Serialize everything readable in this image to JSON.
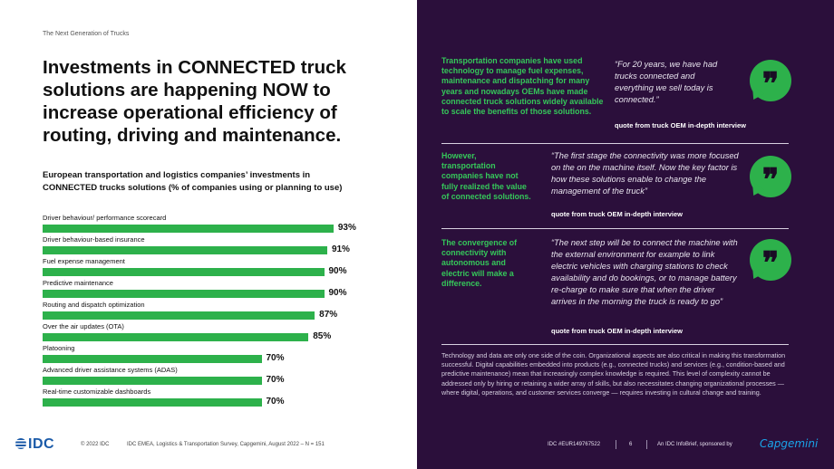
{
  "eyebrow": "The Next Generation of Trucks",
  "headline": "Investments in CONNECTED truck solutions are happening NOW to increase operational efficiency of routing, driving and maintenance.",
  "chart_title_part1": "European transportation and logistics companies’ investments in",
  "chart_title_part2": "CONNECTED",
  "chart_title_part3": " trucks solutions (% of companies using or planning to use)",
  "chart_data": {
    "type": "bar",
    "orientation": "horizontal",
    "categories": [
      "Driver behaviour/ performance scorecard",
      "Driver behaviour-based insurance",
      "Fuel expense management",
      "Predictive maintenance",
      "Routing and dispatch optimization",
      "Over the air updates (OTA)",
      "Platooning",
      "Advanced driver assistance systems (ADAS)",
      "Real-time customizable dashboards"
    ],
    "values": [
      93,
      91,
      90,
      90,
      87,
      85,
      70,
      70,
      70
    ],
    "value_labels": [
      "93%",
      "91%",
      "90%",
      "90%",
      "87%",
      "85%",
      "70%",
      "70%",
      "70%"
    ],
    "xlim": [
      0,
      100
    ],
    "bar_color": "#2db14b"
  },
  "sections": [
    {
      "green": "Transportation companies have used technology to manage fuel expenses, maintenance and dispatching for many years and nowadays OEMs have made connected truck solutions widely available to scale the benefits of those solutions.",
      "quote": "“For 20 years, we have had trucks connected and everything we sell today is connected.”",
      "attribution": "quote from truck OEM in-depth interview",
      "icon": "quote-icon"
    },
    {
      "green": "However, transportation companies have not fully realized the value of connected solutions.",
      "quote": "“The first stage the connectivity was more focused on the on the machine itself. Now the key factor is how these solutions enable to change the management of the truck”",
      "attribution": "quote from truck OEM in-depth interview",
      "icon": "quote-icon"
    },
    {
      "green": "The convergence of connectivity with autonomous and electric will make a difference.",
      "quote": "“The next step will be to connect the machine with the external environment for example to link electric vehicles with charging stations to check availability and do bookings, or to manage battery re-charge to make sure that when the driver arrives in the morning the truck is ready to go”",
      "attribution": "quote from truck OEM in-depth interview",
      "icon": "quote-icon"
    }
  ],
  "body_text": "Technology and data are only one side of the coin. Organizational aspects are also critical in making this transformation successful. Digital capabilities embedded into products (e.g., connected trucks) and services (e.g., condition-based and predictive maintenance) mean that increasingly complex knowledge is required. This level of complexity cannot be addressed only by hiring or retaining a wider array of skills, but also necessitates changing organizational processes — where digital, operations, and customer services converge — requires investing in cultural change and training.",
  "footer": {
    "logo": "IDC",
    "copyright": "© 2022 IDC",
    "source": "IDC EMEA, Logistics & Transportation Survey, Capgemini, August 2022 – N = 151",
    "doc_id": "IDC #EUR149767522",
    "page": "6",
    "sponsor": "An IDC InfoBrief, sponsored by",
    "sponsor_logo": "Capgemini"
  },
  "colors": {
    "accent_green": "#2db14b",
    "panel_purple": "#2b0f3b",
    "text_green": "#35c85a"
  }
}
